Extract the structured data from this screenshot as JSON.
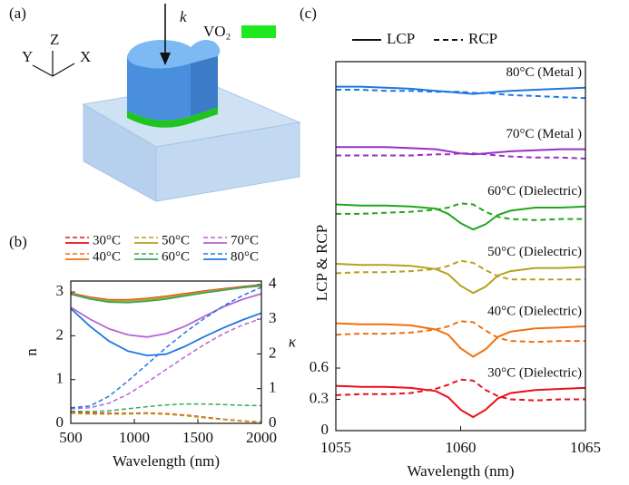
{
  "panel_a": {
    "label": "(a)",
    "wave_vector": "k",
    "material": "VO₂",
    "axes": {
      "z": "Z",
      "y": "Y",
      "x": "X"
    }
  },
  "chart_data": [
    {
      "type": "line",
      "label": "(b)",
      "xlabel": "Wavelength (nm)",
      "ylabel": "n",
      "y2label": "κ",
      "x": [
        500,
        650,
        800,
        950,
        1100,
        1250,
        1400,
        1550,
        1700,
        1850,
        2000
      ],
      "xlim": [
        500,
        2000
      ],
      "xticks": [
        500,
        1000,
        1500,
        2000
      ],
      "ylim": [
        0,
        3.25
      ],
      "yticks": [
        0,
        1,
        2,
        3
      ],
      "y2lim": [
        0,
        4.1
      ],
      "y2ticks": [
        0,
        1,
        2,
        3,
        4
      ],
      "series": [
        {
          "name": "30°C",
          "color": "#e8101a",
          "values": [
            2.97,
            2.88,
            2.82,
            2.82,
            2.85,
            2.9,
            2.96,
            3.02,
            3.07,
            3.12,
            3.16
          ],
          "kappa": [
            0.32,
            0.3,
            0.29,
            0.29,
            0.3,
            0.28,
            0.24,
            0.18,
            0.12,
            0.07,
            0.04
          ]
        },
        {
          "name": "40°C",
          "color": "#f07010",
          "values": [
            2.96,
            2.87,
            2.81,
            2.81,
            2.84,
            2.89,
            2.95,
            3.01,
            3.06,
            3.11,
            3.15
          ],
          "kappa": [
            0.3,
            0.28,
            0.27,
            0.28,
            0.29,
            0.27,
            0.23,
            0.17,
            0.11,
            0.07,
            0.04
          ]
        },
        {
          "name": "50°C",
          "color": "#b5a21e",
          "values": [
            2.95,
            2.86,
            2.8,
            2.8,
            2.83,
            2.88,
            2.94,
            3.0,
            3.05,
            3.1,
            3.14
          ],
          "kappa": [
            0.29,
            0.27,
            0.27,
            0.27,
            0.28,
            0.26,
            0.22,
            0.16,
            0.11,
            0.06,
            0.03
          ]
        },
        {
          "name": "60°C",
          "color": "#3aa65a",
          "values": [
            2.95,
            2.84,
            2.77,
            2.76,
            2.79,
            2.84,
            2.91,
            2.98,
            3.04,
            3.1,
            3.15
          ],
          "kappa": [
            0.35,
            0.34,
            0.36,
            0.42,
            0.48,
            0.53,
            0.56,
            0.56,
            0.54,
            0.52,
            0.51
          ]
        },
        {
          "name": "70°C",
          "color": "#b565d6",
          "values": [
            2.65,
            2.38,
            2.16,
            2.02,
            1.97,
            2.05,
            2.22,
            2.44,
            2.66,
            2.83,
            2.96
          ],
          "kappa": [
            0.42,
            0.45,
            0.58,
            0.84,
            1.18,
            1.55,
            1.92,
            2.27,
            2.58,
            2.83,
            3.02
          ]
        },
        {
          "name": "80°C",
          "color": "#1f78e0",
          "values": [
            2.62,
            2.22,
            1.88,
            1.65,
            1.55,
            1.58,
            1.76,
            1.98,
            2.18,
            2.36,
            2.52
          ],
          "kappa": [
            0.45,
            0.5,
            0.78,
            1.22,
            1.7,
            2.18,
            2.62,
            3.02,
            3.38,
            3.68,
            3.92
          ]
        }
      ]
    },
    {
      "type": "line",
      "label": "(c)",
      "xlabel": "Wavelength (nm)",
      "ylabel": "LCP & RCP",
      "line_styles": [
        "LCP",
        "RCP"
      ],
      "x": [
        1055,
        1056,
        1057,
        1058,
        1059,
        1059.5,
        1060,
        1060.5,
        1061,
        1061.5,
        1062,
        1063,
        1064,
        1065
      ],
      "xlim": [
        1055,
        1065
      ],
      "xticks": [
        1055,
        1060,
        1065
      ],
      "ylim": [
        0,
        3.54
      ],
      "yticks": [
        0,
        0.3,
        0.6
      ],
      "series": [
        {
          "name": "30°C (Dielectric)",
          "color": "#e8101a",
          "lcp": [
            0.43,
            0.42,
            0.42,
            0.41,
            0.38,
            0.32,
            0.2,
            0.13,
            0.2,
            0.31,
            0.36,
            0.39,
            0.4,
            0.41
          ],
          "rcp": [
            0.34,
            0.35,
            0.35,
            0.36,
            0.4,
            0.44,
            0.49,
            0.48,
            0.39,
            0.33,
            0.3,
            0.29,
            0.3,
            0.3
          ]
        },
        {
          "name": "40°C (Dielectric)",
          "color": "#f07010",
          "lcp": [
            1.03,
            1.02,
            1.02,
            1.01,
            0.97,
            0.92,
            0.79,
            0.71,
            0.78,
            0.9,
            0.95,
            0.98,
            0.99,
            1.0
          ],
          "rcp": [
            0.92,
            0.93,
            0.93,
            0.94,
            0.97,
            1.0,
            1.05,
            1.04,
            0.96,
            0.89,
            0.86,
            0.85,
            0.86,
            0.86
          ]
        },
        {
          "name": "50°C (Dielectric)",
          "color": "#b5a21e",
          "lcp": [
            1.6,
            1.59,
            1.59,
            1.58,
            1.55,
            1.5,
            1.39,
            1.32,
            1.38,
            1.49,
            1.53,
            1.56,
            1.56,
            1.57
          ],
          "rcp": [
            1.51,
            1.52,
            1.52,
            1.53,
            1.55,
            1.58,
            1.63,
            1.61,
            1.54,
            1.48,
            1.45,
            1.45,
            1.45,
            1.45
          ]
        },
        {
          "name": "60°C (Dielectric)",
          "color": "#22a61e",
          "lcp": [
            2.17,
            2.16,
            2.16,
            2.15,
            2.13,
            2.08,
            1.99,
            1.93,
            1.98,
            2.07,
            2.11,
            2.14,
            2.14,
            2.15
          ],
          "rcp": [
            2.08,
            2.08,
            2.09,
            2.1,
            2.12,
            2.14,
            2.18,
            2.17,
            2.1,
            2.05,
            2.03,
            2.02,
            2.03,
            2.03
          ]
        },
        {
          "name": "70°C (Metal )",
          "color": "#9a2fc6",
          "lcp": [
            2.72,
            2.72,
            2.72,
            2.71,
            2.7,
            2.68,
            2.66,
            2.65,
            2.66,
            2.67,
            2.68,
            2.69,
            2.7,
            2.7
          ],
          "rcp": [
            2.64,
            2.64,
            2.64,
            2.64,
            2.65,
            2.65,
            2.66,
            2.66,
            2.65,
            2.64,
            2.63,
            2.62,
            2.62,
            2.61
          ]
        },
        {
          "name": "80°C (Metal )",
          "color": "#1f78e0",
          "lcp": [
            3.3,
            3.3,
            3.29,
            3.28,
            3.26,
            3.25,
            3.24,
            3.23,
            3.24,
            3.25,
            3.26,
            3.27,
            3.28,
            3.29
          ],
          "rcp": [
            3.27,
            3.27,
            3.26,
            3.26,
            3.25,
            3.25,
            3.25,
            3.24,
            3.24,
            3.23,
            3.22,
            3.21,
            3.2,
            3.19
          ]
        }
      ]
    }
  ]
}
